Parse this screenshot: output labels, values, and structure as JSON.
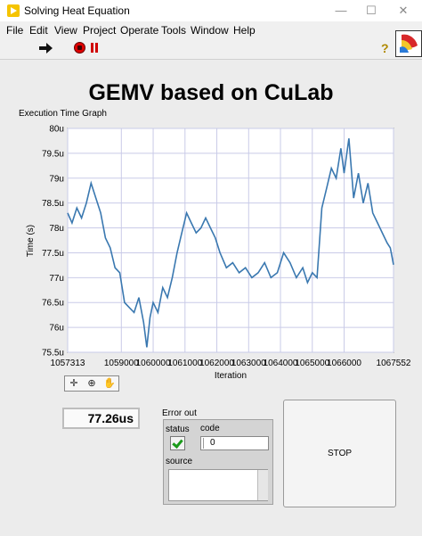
{
  "window": {
    "title": "Solving Heat Equation",
    "minimize": "—",
    "maximize": "☐",
    "close": "✕"
  },
  "menu": [
    "File",
    "Edit",
    "View",
    "Project",
    "Operate",
    "Tools",
    "Window",
    "Help"
  ],
  "toolbar": {
    "run_icon": "run-arrow-icon",
    "abort_icon": "abort-execution-icon",
    "pause_icon": "pause-icon",
    "help_glyph": "?"
  },
  "panel": {
    "title": "GEMV based on CuLab",
    "graph_label": "Execution Time Graph",
    "time_value": "77.26us"
  },
  "error_out": {
    "label": "Error out",
    "status_label": "status",
    "code_label": "code",
    "code_value": "0",
    "source_label": "source",
    "source_value": ""
  },
  "stop_button": {
    "label": "STOP"
  },
  "chart_data": {
    "type": "line",
    "title": "",
    "xlabel": "Iteration",
    "ylabel": "Time (s)",
    "xlim": [
      1057313,
      1067552
    ],
    "ylim": [
      75.5,
      80
    ],
    "x_ticks": [
      "1057313",
      "1059000",
      "1060000",
      "1061000",
      "1062000",
      "1063000",
      "1064000",
      "1065000",
      "1066000",
      "1067552"
    ],
    "x_tick_values": [
      1057313,
      1059000,
      1060000,
      1061000,
      1062000,
      1063000,
      1064000,
      1065000,
      1066000,
      1067552
    ],
    "y_ticks": [
      "75.5u",
      "76u",
      "76.5u",
      "77u",
      "77.5u",
      "78u",
      "78.5u",
      "79u",
      "79.5u",
      "80u"
    ],
    "y_tick_values": [
      75.5,
      76,
      76.5,
      77,
      77.5,
      78,
      78.5,
      79,
      79.5,
      80
    ],
    "grid": true,
    "line_color": "#3a78b0",
    "series": [
      {
        "x": [
          1057313,
          1057450,
          1057600,
          1057750,
          1057900,
          1058050,
          1058200,
          1058350,
          1058500,
          1058650,
          1058800,
          1058950,
          1059100,
          1059250,
          1059400,
          1059550,
          1059700,
          1059800,
          1059900,
          1060000,
          1060150,
          1060300,
          1060450,
          1060600,
          1060750,
          1060900,
          1061050,
          1061200,
          1061350,
          1061500,
          1061650,
          1061800,
          1061950,
          1062100,
          1062300,
          1062500,
          1062700,
          1062900,
          1063100,
          1063300,
          1063500,
          1063700,
          1063900,
          1064100,
          1064300,
          1064500,
          1064700,
          1064850,
          1065000,
          1065150,
          1065300,
          1065450,
          1065600,
          1065750,
          1065900,
          1066000,
          1066150,
          1066300,
          1066450,
          1066600,
          1066750,
          1066900,
          1067050,
          1067200,
          1067350,
          1067450,
          1067552
        ],
        "y": [
          78.3,
          78.1,
          78.4,
          78.2,
          78.5,
          78.9,
          78.6,
          78.3,
          77.8,
          77.6,
          77.2,
          77.1,
          76.5,
          76.4,
          76.3,
          76.6,
          76.1,
          75.6,
          76.2,
          76.5,
          76.3,
          76.8,
          76.6,
          77.0,
          77.5,
          77.9,
          78.3,
          78.1,
          77.9,
          78.0,
          78.2,
          78.0,
          77.8,
          77.5,
          77.2,
          77.3,
          77.1,
          77.2,
          77.0,
          77.1,
          77.3,
          77.0,
          77.1,
          77.5,
          77.3,
          77.0,
          77.2,
          76.9,
          77.1,
          77.0,
          78.4,
          78.8,
          79.2,
          79.0,
          79.6,
          79.1,
          79.8,
          78.6,
          79.1,
          78.5,
          78.9,
          78.3,
          78.1,
          77.9,
          77.7,
          77.6,
          77.26
        ]
      }
    ]
  }
}
